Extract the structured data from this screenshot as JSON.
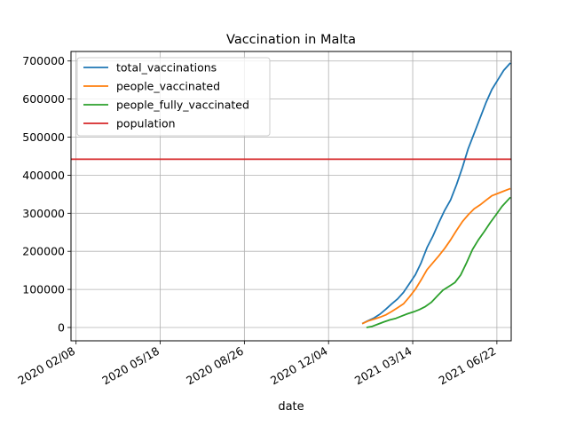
{
  "chart_data": {
    "type": "line",
    "title": "Vaccination in Malta",
    "xlabel": "date",
    "ylabel": "",
    "xlim": [
      "2020-02-02",
      "2021-07-09"
    ],
    "ylim": [
      -35000,
      725000
    ],
    "grid": true,
    "legend_position": "top-left",
    "x_ticks": [
      {
        "date": "2020-02-08",
        "label": "2020 02/08"
      },
      {
        "date": "2020-05-18",
        "label": "2020 05/18"
      },
      {
        "date": "2020-08-26",
        "label": "2020 08/26"
      },
      {
        "date": "2020-12-04",
        "label": "2020 12/04"
      },
      {
        "date": "2021-03-14",
        "label": "2021 03/14"
      },
      {
        "date": "2021-06-22",
        "label": "2021 06/22"
      }
    ],
    "y_ticks": [
      {
        "value": 0,
        "label": "0"
      },
      {
        "value": 100000,
        "label": "100000"
      },
      {
        "value": 200000,
        "label": "200000"
      },
      {
        "value": 300000,
        "label": "300000"
      },
      {
        "value": 400000,
        "label": "400000"
      },
      {
        "value": 500000,
        "label": "500000"
      },
      {
        "value": 600000,
        "label": "600000"
      },
      {
        "value": 700000,
        "label": "700000"
      }
    ],
    "series": [
      {
        "name": "total_vaccinations",
        "color": "#1f77b4",
        "points": [
          [
            "2021-01-13",
            10000
          ],
          [
            "2021-01-20",
            18000
          ],
          [
            "2021-01-27",
            25000
          ],
          [
            "2021-02-03",
            35000
          ],
          [
            "2021-02-10",
            48000
          ],
          [
            "2021-02-17",
            62000
          ],
          [
            "2021-02-24",
            75000
          ],
          [
            "2021-03-03",
            92000
          ],
          [
            "2021-03-10",
            115000
          ],
          [
            "2021-03-17",
            138000
          ],
          [
            "2021-03-24",
            170000
          ],
          [
            "2021-03-31",
            210000
          ],
          [
            "2021-04-07",
            240000
          ],
          [
            "2021-04-14",
            275000
          ],
          [
            "2021-04-21",
            308000
          ],
          [
            "2021-04-28",
            335000
          ],
          [
            "2021-05-05",
            375000
          ],
          [
            "2021-05-12",
            420000
          ],
          [
            "2021-05-19",
            470000
          ],
          [
            "2021-05-26",
            510000
          ],
          [
            "2021-06-02",
            550000
          ],
          [
            "2021-06-09",
            590000
          ],
          [
            "2021-06-16",
            625000
          ],
          [
            "2021-06-23",
            650000
          ],
          [
            "2021-06-30",
            675000
          ],
          [
            "2021-07-08",
            695000
          ]
        ]
      },
      {
        "name": "people_vaccinated",
        "color": "#ff7f0e",
        "points": [
          [
            "2021-01-13",
            10000
          ],
          [
            "2021-01-20",
            17000
          ],
          [
            "2021-01-27",
            22000
          ],
          [
            "2021-02-03",
            27000
          ],
          [
            "2021-02-10",
            33000
          ],
          [
            "2021-02-17",
            42000
          ],
          [
            "2021-02-24",
            52000
          ],
          [
            "2021-03-03",
            62000
          ],
          [
            "2021-03-10",
            80000
          ],
          [
            "2021-03-17",
            100000
          ],
          [
            "2021-03-24",
            125000
          ],
          [
            "2021-03-31",
            152000
          ],
          [
            "2021-04-07",
            170000
          ],
          [
            "2021-04-14",
            188000
          ],
          [
            "2021-04-21",
            208000
          ],
          [
            "2021-04-28",
            230000
          ],
          [
            "2021-05-05",
            255000
          ],
          [
            "2021-05-12",
            278000
          ],
          [
            "2021-05-19",
            296000
          ],
          [
            "2021-05-26",
            312000
          ],
          [
            "2021-06-02",
            322000
          ],
          [
            "2021-06-09",
            334000
          ],
          [
            "2021-06-16",
            346000
          ],
          [
            "2021-06-23",
            352000
          ],
          [
            "2021-06-30",
            358000
          ],
          [
            "2021-07-08",
            365000
          ]
        ]
      },
      {
        "name": "people_fully_vaccinated",
        "color": "#2ca02c",
        "points": [
          [
            "2021-01-18",
            0
          ],
          [
            "2021-01-25",
            3000
          ],
          [
            "2021-02-01",
            9000
          ],
          [
            "2021-02-08",
            15000
          ],
          [
            "2021-02-15",
            20000
          ],
          [
            "2021-02-22",
            24000
          ],
          [
            "2021-03-01",
            30000
          ],
          [
            "2021-03-08",
            36000
          ],
          [
            "2021-03-15",
            41000
          ],
          [
            "2021-03-22",
            47000
          ],
          [
            "2021-03-29",
            55000
          ],
          [
            "2021-04-05",
            66000
          ],
          [
            "2021-04-12",
            82000
          ],
          [
            "2021-04-19",
            98000
          ],
          [
            "2021-04-26",
            108000
          ],
          [
            "2021-05-03",
            118000
          ],
          [
            "2021-05-10",
            138000
          ],
          [
            "2021-05-17",
            170000
          ],
          [
            "2021-05-24",
            205000
          ],
          [
            "2021-05-31",
            230000
          ],
          [
            "2021-06-07",
            252000
          ],
          [
            "2021-06-14",
            275000
          ],
          [
            "2021-06-21",
            296000
          ],
          [
            "2021-06-28",
            318000
          ],
          [
            "2021-07-08",
            342000
          ]
        ]
      },
      {
        "name": "population",
        "color": "#d62728",
        "hline": 442000
      }
    ]
  }
}
